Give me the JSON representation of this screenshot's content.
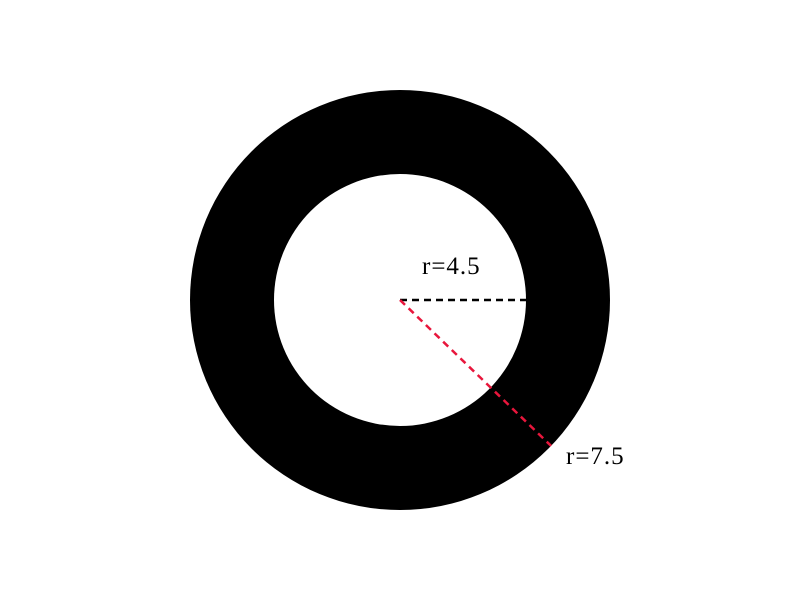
{
  "diagram": {
    "type": "annulus",
    "inner_radius": 4.5,
    "outer_radius": 7.5,
    "inner_label": "r=4.5",
    "outer_label": "r=7.5",
    "colors": {
      "ring_fill": "#000000",
      "background": "#ffffff",
      "inner_radius_line": "#000000",
      "outer_radius_line": "#e8163c",
      "label_text": "#000000"
    }
  }
}
